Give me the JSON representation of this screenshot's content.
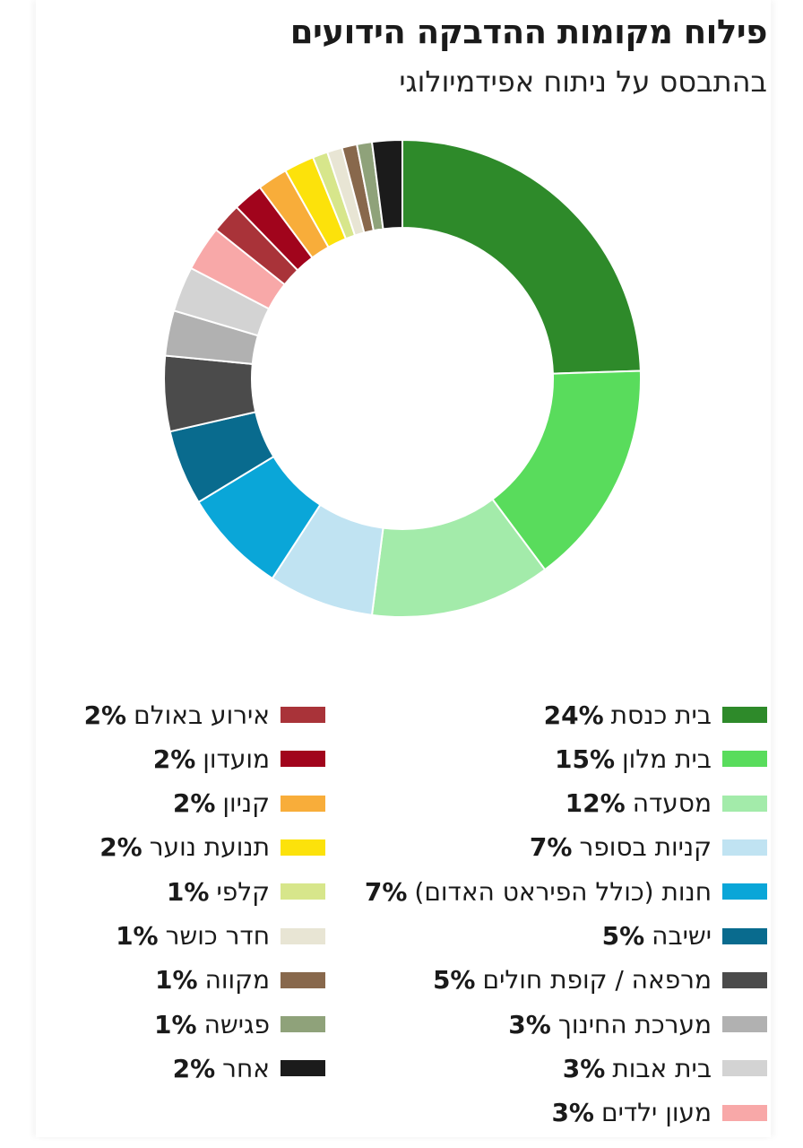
{
  "header": {
    "title": "פילוח מקומות ההדבקה הידועים",
    "subtitle": "בהתבסס על ניתוח אפידמיולוגי"
  },
  "chart_data": {
    "type": "pie",
    "style": "donut",
    "title": "פילוח מקומות ההדבקה הידועים",
    "subtitle": "בהתבסס על ניתוח אפידמיולוגי",
    "value_unit": "%",
    "series": [
      {
        "label": "בית כנסת",
        "value": 24,
        "display": "24%",
        "color": "#2e8a2a"
      },
      {
        "label": "בית מלון",
        "value": 15,
        "display": "15%",
        "color": "#59dc5c"
      },
      {
        "label": "מסעדה",
        "value": 12,
        "display": "12%",
        "color": "#a3ebaa"
      },
      {
        "label": "קניות בסופר",
        "value": 7,
        "display": "7%",
        "color": "#c0e3f2"
      },
      {
        "label": "חנות (כולל הפיראט האדום)",
        "value": 7,
        "display": "7%",
        "color": "#0aa6d8"
      },
      {
        "label": "ישיבה",
        "value": 5,
        "display": "5%",
        "color": "#096b8e"
      },
      {
        "label": "מרפאה / קופת חולים",
        "value": 5,
        "display": "5%",
        "color": "#4b4b4b"
      },
      {
        "label": "מערכת החינוך",
        "value": 3,
        "display": "3%",
        "color": "#b1b1b1"
      },
      {
        "label": "בית אבות",
        "value": 3,
        "display": "3%",
        "color": "#d3d3d3"
      },
      {
        "label": "מעון ילדים",
        "value": 3,
        "display": "3%",
        "color": "#f8a8a8"
      },
      {
        "label": "אירוע באולם",
        "value": 2,
        "display": "2%",
        "color": "#a93339"
      },
      {
        "label": "מועדון",
        "value": 2,
        "display": "2%",
        "color": "#a1041c"
      },
      {
        "label": "קניון",
        "value": 2,
        "display": "2%",
        "color": "#f8ad3a"
      },
      {
        "label": "תנועת נוער",
        "value": 2,
        "display": "2%",
        "color": "#fce20b"
      },
      {
        "label": "קלפי",
        "value": 1,
        "display": "1%",
        "color": "#d7e68b"
      },
      {
        "label": "חדר כושר",
        "value": 1,
        "display": "1%",
        "color": "#e8e5d4"
      },
      {
        "label": "מקווה",
        "value": 1,
        "display": "1%",
        "color": "#88684c"
      },
      {
        "label": "פגישה",
        "value": 1,
        "display": "1%",
        "color": "#8fa27a"
      },
      {
        "label": "אחר",
        "value": 2,
        "display": "2%",
        "color": "#1b1b1b"
      }
    ]
  }
}
